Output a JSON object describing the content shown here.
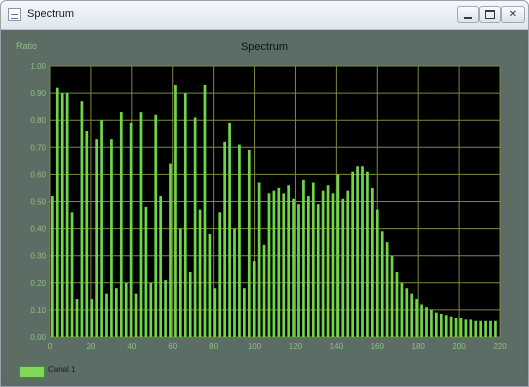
{
  "window": {
    "title": "Spectrum",
    "minimize_label": "",
    "maximize_label": "",
    "close_label": "✕"
  },
  "colors": {
    "plot_background": "#000000",
    "grid": "#7c8a3c",
    "bar": "#6fd64a",
    "axis_text": "#8ec07f"
  },
  "chart_data": {
    "type": "bar",
    "title": "Spectrum",
    "y_caption": "Ratio",
    "ylim": [
      0,
      1.0
    ],
    "y_ticks": [
      "0.00",
      "0.10",
      "0.20",
      "0.30",
      "0.40",
      "0.50",
      "0.60",
      "0.70",
      "0.80",
      "0.90",
      "1.00"
    ],
    "xlim": [
      0,
      220
    ],
    "x_ticks": [
      "0",
      "20",
      "40",
      "60",
      "80",
      "100",
      "120",
      "140",
      "160",
      "180",
      "200",
      "220"
    ],
    "grid": true,
    "legend_position": "bottom-left",
    "series": [
      {
        "name": "Canal 1",
        "values": [
          0.52,
          0.92,
          0.9,
          0.9,
          0.46,
          0.14,
          0.87,
          0.76,
          0.14,
          0.73,
          0.8,
          0.16,
          0.73,
          0.18,
          0.83,
          0.2,
          0.79,
          0.16,
          0.83,
          0.48,
          0.2,
          0.82,
          0.52,
          0.21,
          0.64,
          0.93,
          0.4,
          0.9,
          0.24,
          0.81,
          0.47,
          0.93,
          0.38,
          0.18,
          0.46,
          0.72,
          0.79,
          0.4,
          0.71,
          0.18,
          0.69,
          0.28,
          0.57,
          0.34,
          0.53,
          0.54,
          0.55,
          0.53,
          0.56,
          0.51,
          0.49,
          0.58,
          0.52,
          0.57,
          0.49,
          0.54,
          0.56,
          0.53,
          0.6,
          0.51,
          0.54,
          0.61,
          0.63,
          0.63,
          0.61,
          0.55,
          0.47,
          0.39,
          0.35,
          0.3,
          0.24,
          0.2,
          0.18,
          0.16,
          0.14,
          0.12,
          0.11,
          0.1,
          0.09,
          0.085,
          0.08,
          0.075,
          0.07,
          0.07,
          0.065,
          0.065,
          0.06,
          0.06,
          0.06,
          0.06,
          0.06
        ]
      }
    ]
  }
}
